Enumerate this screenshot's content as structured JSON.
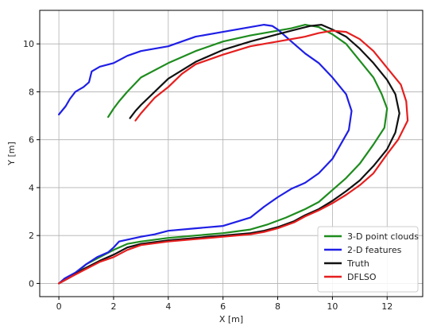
{
  "chart_data": {
    "type": "line",
    "title": "",
    "xlabel": "X [m]",
    "ylabel": "Y [m]",
    "xlim": [
      -0.7,
      13.3
    ],
    "ylim": [
      -0.55,
      11.4
    ],
    "xticks": [
      0,
      2,
      4,
      6,
      8,
      10,
      12
    ],
    "yticks": [
      0,
      2,
      4,
      6,
      8,
      10
    ],
    "grid": true,
    "legend_position": "lower-right",
    "series": [
      {
        "name": "3-D point clouds",
        "color": "#1e8c1e",
        "points": [
          [
            0,
            0
          ],
          [
            0.3,
            0.2
          ],
          [
            0.7,
            0.5
          ],
          [
            1.0,
            0.8
          ],
          [
            1.5,
            1.1
          ],
          [
            2.0,
            1.4
          ],
          [
            2.5,
            1.65
          ],
          [
            3,
            1.75
          ],
          [
            4,
            1.9
          ],
          [
            5,
            2.0
          ],
          [
            6,
            2.1
          ],
          [
            7,
            2.25
          ],
          [
            7.6,
            2.45
          ],
          [
            8.3,
            2.75
          ],
          [
            9,
            3.1
          ],
          [
            9.5,
            3.4
          ],
          [
            10,
            3.9
          ],
          [
            10.5,
            4.4
          ],
          [
            11,
            5.0
          ],
          [
            11.5,
            5.8
          ],
          [
            11.9,
            6.5
          ],
          [
            12.0,
            7.3
          ],
          [
            11.8,
            7.9
          ],
          [
            11.5,
            8.6
          ],
          [
            11.0,
            9.3
          ],
          [
            10.5,
            10.0
          ],
          [
            10.0,
            10.4
          ],
          [
            9.5,
            10.7
          ],
          [
            9.0,
            10.8
          ],
          [
            8.5,
            10.65
          ],
          [
            8.0,
            10.55
          ],
          [
            7.5,
            10.45
          ],
          [
            7,
            10.35
          ],
          [
            6,
            10.1
          ],
          [
            5,
            9.7
          ],
          [
            4,
            9.2
          ],
          [
            3,
            8.6
          ],
          [
            2.5,
            8.0
          ],
          [
            2.2,
            7.6
          ],
          [
            2.0,
            7.3
          ],
          [
            1.8,
            6.95
          ]
        ]
      },
      {
        "name": "2-D features",
        "color": "#1f1fe6",
        "points": [
          [
            0,
            0
          ],
          [
            0.2,
            0.2
          ],
          [
            0.6,
            0.45
          ],
          [
            1.0,
            0.8
          ],
          [
            1.4,
            1.1
          ],
          [
            1.8,
            1.3
          ],
          [
            2.0,
            1.5
          ],
          [
            2.2,
            1.75
          ],
          [
            2.6,
            1.85
          ],
          [
            3.0,
            1.95
          ],
          [
            3.5,
            2.05
          ],
          [
            4,
            2.2
          ],
          [
            5,
            2.3
          ],
          [
            6,
            2.4
          ],
          [
            7,
            2.75
          ],
          [
            7.5,
            3.2
          ],
          [
            8,
            3.6
          ],
          [
            8.5,
            3.95
          ],
          [
            9,
            4.2
          ],
          [
            9.5,
            4.6
          ],
          [
            10,
            5.2
          ],
          [
            10.3,
            5.8
          ],
          [
            10.6,
            6.4
          ],
          [
            10.7,
            7.2
          ],
          [
            10.5,
            7.9
          ],
          [
            10,
            8.6
          ],
          [
            9.5,
            9.2
          ],
          [
            9.0,
            9.6
          ],
          [
            8.5,
            10.1
          ],
          [
            8.2,
            10.4
          ],
          [
            8.0,
            10.6
          ],
          [
            7.8,
            10.75
          ],
          [
            7.5,
            10.8
          ],
          [
            7,
            10.7
          ],
          [
            6,
            10.5
          ],
          [
            5,
            10.3
          ],
          [
            4,
            9.9
          ],
          [
            3,
            9.7
          ],
          [
            2.5,
            9.5
          ],
          [
            2,
            9.2
          ],
          [
            1.5,
            9.05
          ],
          [
            1.2,
            8.85
          ],
          [
            1.1,
            8.4
          ],
          [
            0.9,
            8.2
          ],
          [
            0.6,
            8.0
          ],
          [
            0.4,
            7.7
          ],
          [
            0.25,
            7.4
          ],
          [
            0,
            7.05
          ]
        ]
      },
      {
        "name": "Truth",
        "color": "#111111",
        "points": [
          [
            0,
            0
          ],
          [
            0.4,
            0.25
          ],
          [
            0.9,
            0.6
          ],
          [
            1.5,
            0.95
          ],
          [
            2.0,
            1.2
          ],
          [
            2.5,
            1.5
          ],
          [
            3,
            1.65
          ],
          [
            4,
            1.8
          ],
          [
            5,
            1.9
          ],
          [
            6,
            2.0
          ],
          [
            7,
            2.1
          ],
          [
            7.5,
            2.2
          ],
          [
            8,
            2.35
          ],
          [
            8.6,
            2.6
          ],
          [
            9,
            2.85
          ],
          [
            9.5,
            3.1
          ],
          [
            10,
            3.45
          ],
          [
            10.5,
            3.85
          ],
          [
            11,
            4.3
          ],
          [
            11.5,
            4.9
          ],
          [
            12,
            5.6
          ],
          [
            12.3,
            6.3
          ],
          [
            12.45,
            7.1
          ],
          [
            12.3,
            7.9
          ],
          [
            12.0,
            8.5
          ],
          [
            11.5,
            9.2
          ],
          [
            11,
            9.8
          ],
          [
            10.5,
            10.3
          ],
          [
            10,
            10.6
          ],
          [
            9.6,
            10.8
          ],
          [
            9.2,
            10.75
          ],
          [
            8.5,
            10.55
          ],
          [
            8,
            10.4
          ],
          [
            7,
            10.1
          ],
          [
            6,
            9.75
          ],
          [
            5,
            9.25
          ],
          [
            4,
            8.55
          ],
          [
            3,
            7.45
          ],
          [
            2.8,
            7.2
          ],
          [
            2.6,
            6.9
          ]
        ]
      },
      {
        "name": "DFLSO",
        "color": "#e61f1f",
        "points": [
          [
            0,
            0
          ],
          [
            0.4,
            0.25
          ],
          [
            0.9,
            0.55
          ],
          [
            1.5,
            0.9
          ],
          [
            2.0,
            1.1
          ],
          [
            2.5,
            1.4
          ],
          [
            3,
            1.6
          ],
          [
            4,
            1.75
          ],
          [
            5,
            1.85
          ],
          [
            6,
            1.95
          ],
          [
            7,
            2.05
          ],
          [
            7.5,
            2.15
          ],
          [
            8,
            2.3
          ],
          [
            8.6,
            2.55
          ],
          [
            9,
            2.8
          ],
          [
            9.5,
            3.05
          ],
          [
            10,
            3.35
          ],
          [
            10.5,
            3.7
          ],
          [
            11,
            4.1
          ],
          [
            11.5,
            4.6
          ],
          [
            12,
            5.4
          ],
          [
            12.4,
            6.0
          ],
          [
            12.75,
            6.8
          ],
          [
            12.7,
            7.6
          ],
          [
            12.5,
            8.3
          ],
          [
            12,
            9.0
          ],
          [
            11.5,
            9.7
          ],
          [
            11,
            10.2
          ],
          [
            10.5,
            10.5
          ],
          [
            10,
            10.55
          ],
          [
            9.5,
            10.45
          ],
          [
            9,
            10.3
          ],
          [
            8,
            10.1
          ],
          [
            7,
            9.9
          ],
          [
            6,
            9.55
          ],
          [
            5,
            9.15
          ],
          [
            4.5,
            8.75
          ],
          [
            4,
            8.2
          ],
          [
            3.5,
            7.75
          ],
          [
            3,
            7.1
          ],
          [
            2.8,
            6.8
          ]
        ]
      }
    ]
  }
}
